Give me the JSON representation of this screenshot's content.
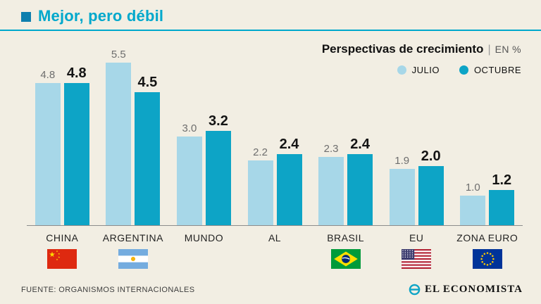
{
  "header": {
    "title": "Mejor, pero débil"
  },
  "chart": {
    "heading_separator": "|"
  },
  "chart_data": {
    "type": "bar",
    "title": "Perspectivas de crecimiento",
    "unit": "EN %",
    "categories": [
      "CHINA",
      "ARGENTINA",
      "MUNDO",
      "AL",
      "BRASIL",
      "EU",
      "ZONA EURO"
    ],
    "series": [
      {
        "name": "JULIO",
        "color": "#a7d7e8",
        "values": [
          4.8,
          5.5,
          3.0,
          2.2,
          2.3,
          1.9,
          1.0
        ]
      },
      {
        "name": "OCTUBRE",
        "color": "#0da4c6",
        "values": [
          4.8,
          4.5,
          3.2,
          2.4,
          2.4,
          2.0,
          1.2
        ]
      }
    ],
    "ylim": [
      0,
      5.5
    ],
    "grid": false,
    "legend_position": "top-right",
    "flags": [
      "china",
      "argentina",
      "",
      "",
      "brazil",
      "usa",
      "eu"
    ]
  },
  "footer": {
    "source": "FUENTE: ORGANISMOS INTERNACIONALES",
    "brand": "EL ECONOMISTA"
  },
  "colors": {
    "background": "#f2eee3",
    "accent": "#00a8cc",
    "julio": "#a7d7e8",
    "octubre": "#0da4c6"
  }
}
